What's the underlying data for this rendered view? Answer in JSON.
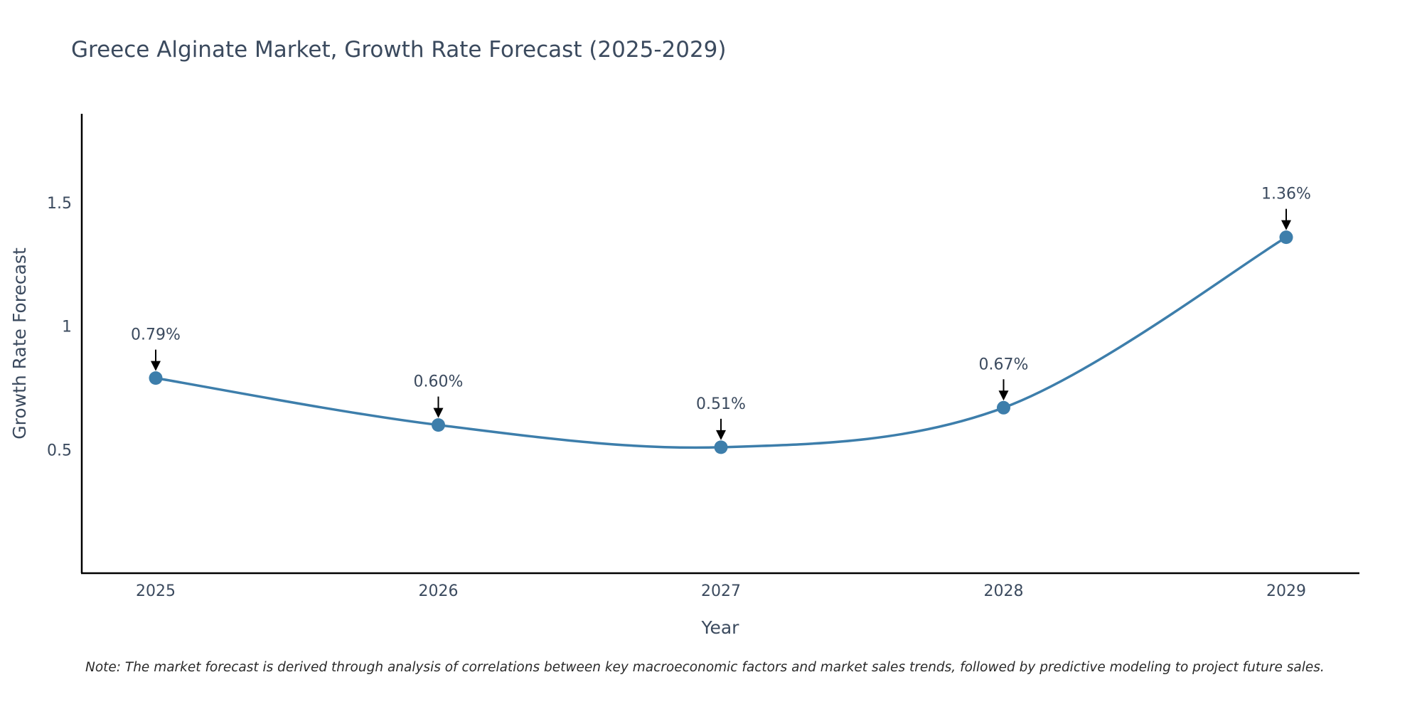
{
  "chart_data": {
    "type": "line",
    "title": "Greece Alginate Market, Growth Rate Forecast (2025-2029)",
    "xlabel": "Year",
    "ylabel": "Growth Rate Forecast",
    "categories": [
      "2025",
      "2026",
      "2027",
      "2028",
      "2029"
    ],
    "series": [
      {
        "name": "Growth Rate Forecast",
        "values": [
          0.79,
          0.6,
          0.51,
          0.67,
          1.36
        ],
        "labels": [
          "0.79%",
          "0.60%",
          "0.51%",
          "0.67%",
          "1.36%"
        ]
      }
    ],
    "yticks": [
      0.5,
      1,
      1.5
    ],
    "ytick_labels": [
      "0.5",
      "1",
      "1.5"
    ],
    "ylim": [
      0,
      1.86
    ],
    "grid": false,
    "line_shape": "spline",
    "note": "Note: The market forecast is derived through analysis of correlations between key macroeconomic factors and market sales trends, followed by predictive modeling to project future sales.",
    "colors": {
      "line": "#3d7eab",
      "marker": "#3d7eab",
      "text": "#3b4a5e",
      "axis": "#000000",
      "annotation_arrow": "#000000"
    }
  }
}
